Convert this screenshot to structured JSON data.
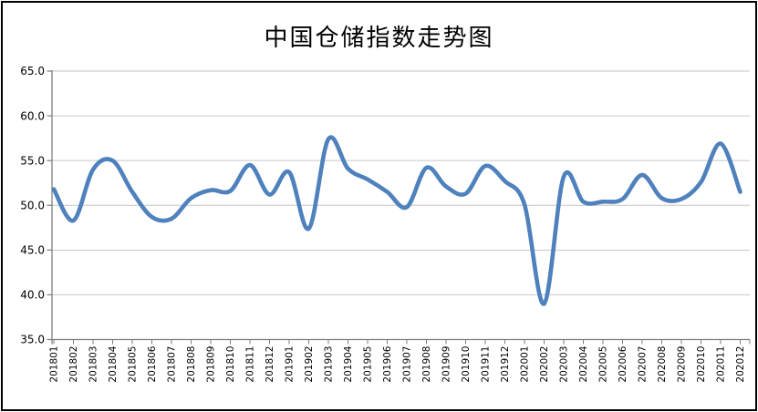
{
  "window": {
    "background": "#FFFFFF",
    "border_color": "#000000"
  },
  "chart_data": {
    "type": "line",
    "title": "中国仓储指数走势图",
    "categories": [
      "201801",
      "201802",
      "201803",
      "201804",
      "201805",
      "201806",
      "201807",
      "201808",
      "201809",
      "201810",
      "201811",
      "201812",
      "201901",
      "201902",
      "201903",
      "201904",
      "201905",
      "201906",
      "201907",
      "201908",
      "201909",
      "201910",
      "201911",
      "201912",
      "202001",
      "202002",
      "202003",
      "202004",
      "202005",
      "202006",
      "202007",
      "202008",
      "202009",
      "202010",
      "202011",
      "202012"
    ],
    "series": [
      {
        "name": "中国仓储指数",
        "values": [
          51.8,
          48.3,
          54.0,
          55.0,
          51.5,
          48.7,
          48.5,
          50.8,
          51.7,
          51.6,
          54.5,
          51.2,
          53.7,
          47.4,
          57.4,
          54.1,
          52.9,
          51.5,
          49.8,
          54.2,
          52.1,
          51.3,
          54.4,
          52.7,
          50.1,
          39.0,
          53.2,
          50.4,
          50.4,
          50.7,
          53.4,
          50.8,
          50.7,
          52.6,
          56.9,
          51.5
        ]
      }
    ],
    "xlabel": "",
    "ylabel": "",
    "ylim": [
      35,
      65
    ],
    "ytick_step": 5,
    "ytick_labels": [
      "65.0",
      "60.0",
      "55.0",
      "50.0",
      "45.0",
      "40.0",
      "35.0"
    ],
    "grid": true,
    "smoothed": true,
    "legend": "none",
    "line_color": "#4F81BD",
    "gridline_color": "#C6C6C6",
    "axis_color": "#7F7F7F",
    "label_color": "#000000"
  }
}
